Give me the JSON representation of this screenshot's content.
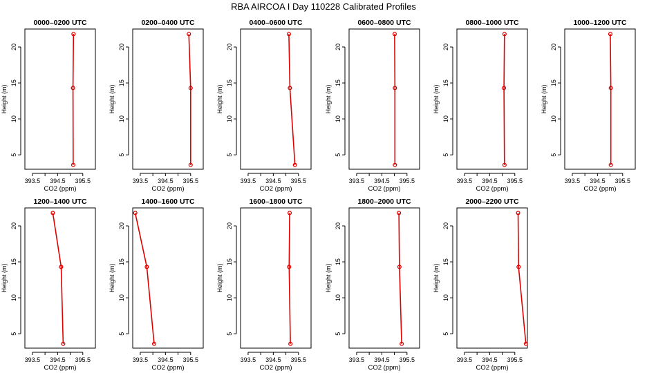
{
  "title": "RBA AIRCOA I  Day 110228  Calibrated Profiles",
  "colors": {
    "profile_line": "#e00000",
    "axis": "#000000"
  },
  "chart_data": [
    {
      "type": "line",
      "title": "0000–0200 UTC",
      "xlabel": "CO2 (ppm)",
      "ylabel": "Height (m)",
      "xlim": [
        393.2,
        396.0
      ],
      "ylim": [
        3,
        22.5
      ],
      "x_ticks": [
        "393.5",
        "394.5",
        "395.5"
      ],
      "x_tick_values": [
        393.5,
        394.0,
        394.5,
        395.0,
        395.5
      ],
      "y_ticks": [
        "5",
        "10",
        "15",
        "20"
      ],
      "y_tick_values": [
        5,
        10,
        15,
        20
      ],
      "heights": [
        3.6,
        14.3,
        21.8
      ],
      "co2": [
        395.12,
        395.11,
        395.13
      ]
    },
    {
      "type": "line",
      "title": "0200–0400 UTC",
      "xlabel": "CO2 (ppm)",
      "ylabel": "Height (m)",
      "xlim": [
        393.2,
        396.0
      ],
      "ylim": [
        3,
        22.5
      ],
      "x_ticks": [
        "393.5",
        "394.5",
        "395.5"
      ],
      "x_tick_values": [
        393.5,
        394.0,
        394.5,
        395.0,
        395.5
      ],
      "y_ticks": [
        "5",
        "10",
        "15",
        "20"
      ],
      "y_tick_values": [
        5,
        10,
        15,
        20
      ],
      "heights": [
        3.6,
        14.3,
        21.8
      ],
      "co2": [
        395.5,
        395.5,
        395.43
      ]
    },
    {
      "type": "line",
      "title": "0400–0600 UTC",
      "xlabel": "CO2 (ppm)",
      "ylabel": "Height (m)",
      "xlim": [
        393.2,
        396.0
      ],
      "ylim": [
        3,
        22.5
      ],
      "x_ticks": [
        "393.5",
        "394.5",
        "395.5"
      ],
      "x_tick_values": [
        393.5,
        394.0,
        394.5,
        395.0,
        395.5
      ],
      "y_ticks": [
        "5",
        "10",
        "15",
        "20"
      ],
      "y_tick_values": [
        5,
        10,
        15,
        20
      ],
      "heights": [
        3.6,
        14.3,
        21.8
      ],
      "co2": [
        395.36,
        395.16,
        395.12
      ]
    },
    {
      "type": "line",
      "title": "0600–0800 UTC",
      "xlabel": "CO2 (ppm)",
      "ylabel": "Height (m)",
      "xlim": [
        393.2,
        396.0
      ],
      "ylim": [
        3,
        22.5
      ],
      "x_ticks": [
        "393.5",
        "394.5",
        "395.5"
      ],
      "x_tick_values": [
        393.5,
        394.0,
        394.5,
        395.0,
        395.5
      ],
      "y_ticks": [
        "5",
        "10",
        "15",
        "20"
      ],
      "y_tick_values": [
        5,
        10,
        15,
        20
      ],
      "heights": [
        3.6,
        14.3,
        21.8
      ],
      "co2": [
        395.02,
        395.02,
        395.01
      ]
    },
    {
      "type": "line",
      "title": "0800–1000 UTC",
      "xlabel": "CO2 (ppm)",
      "ylabel": "Height (m)",
      "xlim": [
        393.2,
        396.0
      ],
      "ylim": [
        3,
        22.5
      ],
      "x_ticks": [
        "393.5",
        "394.5",
        "395.5"
      ],
      "x_tick_values": [
        393.5,
        394.0,
        394.5,
        395.0,
        395.5
      ],
      "y_ticks": [
        "5",
        "10",
        "15",
        "20"
      ],
      "y_tick_values": [
        5,
        10,
        15,
        20
      ],
      "heights": [
        3.6,
        14.3,
        21.8
      ],
      "co2": [
        395.09,
        395.07,
        395.09
      ]
    },
    {
      "type": "line",
      "title": "1000–1200 UTC",
      "xlabel": "CO2 (ppm)",
      "ylabel": "Height (m)",
      "xlim": [
        393.2,
        396.0
      ],
      "ylim": [
        3,
        22.5
      ],
      "x_ticks": [
        "393.5",
        "394.5",
        "395.5"
      ],
      "x_tick_values": [
        393.5,
        394.0,
        394.5,
        395.0,
        395.5
      ],
      "y_ticks": [
        "5",
        "10",
        "15",
        "20"
      ],
      "y_tick_values": [
        5,
        10,
        15,
        20
      ],
      "heights": [
        3.6,
        14.3,
        21.8
      ],
      "co2": [
        395.03,
        395.03,
        395.01
      ]
    },
    {
      "type": "line",
      "title": "1200–1400 UTC",
      "xlabel": "CO2 (ppm)",
      "ylabel": "Height (m)",
      "xlim": [
        393.2,
        396.0
      ],
      "ylim": [
        3,
        22.5
      ],
      "x_ticks": [
        "393.5",
        "394.5",
        "395.5"
      ],
      "x_tick_values": [
        393.5,
        394.0,
        394.5,
        395.0,
        395.5
      ],
      "y_ticks": [
        "5",
        "10",
        "15",
        "20"
      ],
      "y_tick_values": [
        5,
        10,
        15,
        20
      ],
      "heights": [
        3.6,
        14.3,
        21.8
      ],
      "co2": [
        394.72,
        394.64,
        394.31
      ]
    },
    {
      "type": "line",
      "title": "1400–1600 UTC",
      "xlabel": "CO2 (ppm)",
      "ylabel": "Height (m)",
      "xlim": [
        393.2,
        396.0
      ],
      "ylim": [
        3,
        22.5
      ],
      "x_ticks": [
        "393.5",
        "394.5",
        "395.5"
      ],
      "x_tick_values": [
        393.5,
        394.0,
        394.5,
        395.0,
        395.5
      ],
      "y_ticks": [
        "5",
        "10",
        "15",
        "20"
      ],
      "y_tick_values": [
        5,
        10,
        15,
        20
      ],
      "heights": [
        3.6,
        14.3,
        21.8
      ],
      "co2": [
        394.05,
        393.76,
        393.3
      ]
    },
    {
      "type": "line",
      "title": "1600–1800 UTC",
      "xlabel": "CO2 (ppm)",
      "ylabel": "Height (m)",
      "xlim": [
        393.2,
        396.0
      ],
      "ylim": [
        3,
        22.5
      ],
      "x_ticks": [
        "393.5",
        "394.5",
        "395.5"
      ],
      "x_tick_values": [
        393.5,
        394.0,
        394.5,
        395.0,
        395.5
      ],
      "y_ticks": [
        "5",
        "10",
        "15",
        "20"
      ],
      "y_tick_values": [
        5,
        10,
        15,
        20
      ],
      "heights": [
        3.6,
        14.3,
        21.8
      ],
      "co2": [
        395.18,
        395.13,
        395.15
      ]
    },
    {
      "type": "line",
      "title": "1800–2000 UTC",
      "xlabel": "CO2 (ppm)",
      "ylabel": "Height (m)",
      "xlim": [
        393.2,
        396.0
      ],
      "ylim": [
        3,
        22.5
      ],
      "x_ticks": [
        "393.5",
        "394.5",
        "395.5"
      ],
      "x_tick_values": [
        393.5,
        394.0,
        394.5,
        395.0,
        395.5
      ],
      "y_ticks": [
        "5",
        "10",
        "15",
        "20"
      ],
      "y_tick_values": [
        5,
        10,
        15,
        20
      ],
      "heights": [
        3.6,
        14.3,
        21.8
      ],
      "co2": [
        395.29,
        395.2,
        395.18
      ]
    },
    {
      "type": "line",
      "title": "2000–2200 UTC",
      "xlabel": "CO2 (ppm)",
      "ylabel": "Height (m)",
      "xlim": [
        393.2,
        396.0
      ],
      "ylim": [
        3,
        22.5
      ],
      "x_ticks": [
        "393.5",
        "394.5",
        "395.5"
      ],
      "x_tick_values": [
        393.5,
        394.0,
        394.5,
        395.0,
        395.5
      ],
      "y_ticks": [
        "5",
        "10",
        "15",
        "20"
      ],
      "y_tick_values": [
        5,
        10,
        15,
        20
      ],
      "heights": [
        3.6,
        14.3,
        21.8
      ],
      "co2": [
        395.94,
        395.65,
        395.63
      ]
    }
  ]
}
